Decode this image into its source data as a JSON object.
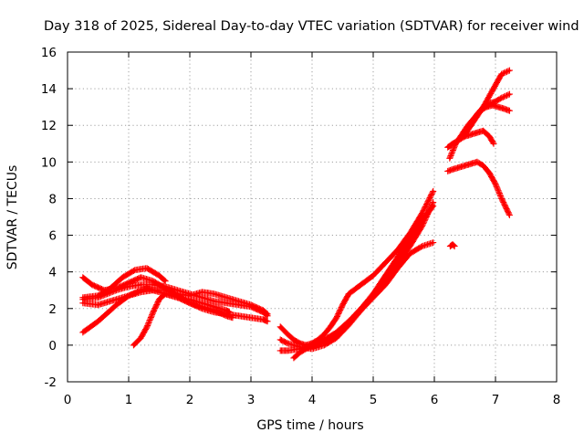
{
  "chart_data": {
    "type": "scatter",
    "title": "Day 318 of 2025, Sidereal Day-to-day VTEC variation (SDTVAR) for receiver wind",
    "xlabel": "GPS time / hours",
    "ylabel": "SDTVAR / TECUs",
    "xlim": [
      0,
      8
    ],
    "ylim": [
      -2,
      16
    ],
    "x_ticks": [
      0,
      1,
      2,
      3,
      4,
      5,
      6,
      7,
      8
    ],
    "y_ticks": [
      -2,
      0,
      2,
      4,
      6,
      8,
      10,
      12,
      14,
      16
    ],
    "x_tick_labels": [
      "0",
      "1",
      "2",
      "3",
      "4",
      "5",
      "6",
      "7",
      "8"
    ],
    "y_tick_labels": [
      "-2",
      "0",
      "2",
      "4",
      "6",
      "8",
      "10",
      "12",
      "14",
      "16"
    ],
    "grid": true,
    "legend": "none",
    "marker": "+",
    "marker_color": "#ff0000",
    "series": [
      {
        "name": "trace-1",
        "x": [
          0.25,
          0.4,
          0.6,
          0.8,
          1.0,
          1.2,
          1.4,
          1.6,
          1.8,
          2.0,
          2.2,
          2.4,
          2.6,
          2.8,
          3.0,
          3.2,
          3.27
        ],
        "y": [
          3.7,
          3.3,
          3.0,
          3.1,
          3.4,
          3.7,
          3.5,
          3.1,
          2.7,
          2.3,
          2.0,
          1.8,
          1.7,
          1.6,
          1.5,
          1.4,
          1.3
        ]
      },
      {
        "name": "trace-2",
        "x": [
          0.25,
          0.5,
          0.8,
          1.0,
          1.2,
          1.4,
          1.6,
          1.8,
          2.0,
          2.2,
          2.4,
          2.6,
          2.8,
          3.0,
          3.2,
          3.27
        ],
        "y": [
          2.5,
          2.6,
          3.0,
          3.2,
          3.3,
          3.3,
          3.2,
          3.0,
          2.8,
          2.6,
          2.4,
          2.3,
          2.2,
          2.1,
          1.8,
          1.6
        ]
      },
      {
        "name": "trace-3",
        "x": [
          0.25,
          0.5,
          0.8,
          1.0,
          1.2,
          1.4,
          1.6,
          1.8,
          2.0,
          2.2,
          2.4,
          2.6,
          2.8,
          3.0,
          3.2,
          3.27
        ],
        "y": [
          2.3,
          2.2,
          2.5,
          2.7,
          2.9,
          3.0,
          3.0,
          2.8,
          2.7,
          2.9,
          2.8,
          2.6,
          2.4,
          2.2,
          1.9,
          1.7
        ]
      },
      {
        "name": "trace-4",
        "x": [
          0.25,
          0.5,
          0.8,
          1.0,
          1.2,
          1.3,
          1.4,
          1.6,
          1.8,
          2.0,
          2.2,
          2.4,
          2.6,
          2.65
        ],
        "y": [
          0.7,
          1.3,
          2.2,
          2.7,
          3.0,
          3.1,
          3.0,
          2.8,
          2.6,
          2.5,
          2.3,
          2.1,
          1.9,
          1.8
        ]
      },
      {
        "name": "trace-5",
        "x": [
          0.25,
          0.5,
          0.7,
          0.9,
          1.1,
          1.3,
          1.5,
          1.6
        ],
        "y": [
          2.6,
          2.7,
          3.1,
          3.7,
          4.1,
          4.2,
          3.8,
          3.5
        ]
      },
      {
        "name": "trace-6",
        "x": [
          1.08,
          1.2,
          1.3,
          1.4,
          1.5,
          1.6,
          1.8,
          2.0,
          2.2,
          2.4,
          2.6,
          2.7
        ],
        "y": [
          0.0,
          0.4,
          1.0,
          1.8,
          2.5,
          2.8,
          2.6,
          2.3,
          2.1,
          1.9,
          1.6,
          1.5
        ]
      },
      {
        "name": "trace-7",
        "x": [
          3.48,
          3.6,
          3.7,
          3.8,
          3.9,
          4.0,
          4.1,
          4.2,
          4.3,
          4.4,
          4.5,
          4.6,
          4.8,
          5.0,
          5.2,
          5.4,
          5.6,
          5.8,
          5.98
        ],
        "y": [
          1.0,
          0.6,
          0.3,
          0.1,
          0.0,
          0.1,
          0.3,
          0.6,
          1.0,
          1.5,
          2.2,
          2.8,
          3.3,
          3.8,
          4.5,
          5.2,
          6.1,
          7.2,
          8.4
        ]
      },
      {
        "name": "trace-8",
        "x": [
          3.48,
          3.6,
          3.8,
          4.0,
          4.2,
          4.4,
          4.6,
          4.8,
          5.0,
          5.2,
          5.4,
          5.6,
          5.8,
          5.98
        ],
        "y": [
          0.3,
          0.1,
          -0.1,
          -0.2,
          0.0,
          0.4,
          1.1,
          1.9,
          2.8,
          3.6,
          4.5,
          5.4,
          6.5,
          7.8
        ]
      },
      {
        "name": "trace-9",
        "x": [
          3.48,
          3.6,
          3.8,
          4.0,
          4.2,
          4.4,
          4.6,
          4.8,
          5.0,
          5.2,
          5.4,
          5.6,
          5.8,
          5.98
        ],
        "y": [
          -0.3,
          -0.3,
          -0.2,
          -0.1,
          0.2,
          0.6,
          1.2,
          1.9,
          2.6,
          3.3,
          4.2,
          5.0,
          5.4,
          5.6
        ]
      },
      {
        "name": "trace-10",
        "x": [
          3.7,
          3.8,
          4.0,
          4.2,
          4.4,
          4.6,
          4.8,
          5.0,
          5.2,
          5.4,
          5.6,
          5.8,
          5.98
        ],
        "y": [
          -0.7,
          -0.4,
          0.0,
          0.3,
          0.7,
          1.3,
          2.0,
          2.8,
          3.8,
          4.8,
          5.8,
          6.8,
          7.6
        ]
      },
      {
        "name": "trace-11",
        "x": [
          6.22,
          6.3,
          6.4,
          6.5,
          6.6,
          6.7,
          6.8,
          6.9,
          7.0,
          7.1,
          7.23
        ],
        "y": [
          9.5,
          9.6,
          9.7,
          9.8,
          9.9,
          10.0,
          9.8,
          9.4,
          8.8,
          8.0,
          7.1
        ]
      },
      {
        "name": "trace-12",
        "x": [
          6.22,
          6.3,
          6.4,
          6.5,
          6.6,
          6.7,
          6.8,
          6.9,
          6.97
        ],
        "y": [
          10.8,
          11.0,
          11.2,
          11.4,
          11.5,
          11.6,
          11.7,
          11.4,
          11.0
        ]
      },
      {
        "name": "trace-13",
        "x": [
          6.25,
          6.35,
          6.45,
          6.55,
          6.65,
          6.75,
          6.85,
          6.95,
          7.05,
          7.15,
          7.23
        ],
        "y": [
          10.2,
          11.0,
          11.5,
          12.0,
          12.4,
          12.8,
          13.0,
          13.1,
          13.0,
          12.9,
          12.8
        ]
      },
      {
        "name": "trace-14",
        "x": [
          6.5,
          6.6,
          6.7,
          6.8,
          6.9,
          7.0,
          7.1,
          7.23
        ],
        "y": [
          11.5,
          12.0,
          12.6,
          13.0,
          13.2,
          13.3,
          13.5,
          13.7
        ]
      },
      {
        "name": "trace-15",
        "x": [
          6.6,
          6.7,
          6.8,
          6.9,
          7.0,
          7.1,
          7.23
        ],
        "y": [
          12.0,
          12.5,
          13.0,
          13.6,
          14.2,
          14.8,
          15.0
        ]
      },
      {
        "name": "trace-16",
        "x": [
          6.26,
          6.3,
          6.33
        ],
        "y": [
          5.4,
          5.5,
          5.4
        ]
      }
    ]
  }
}
